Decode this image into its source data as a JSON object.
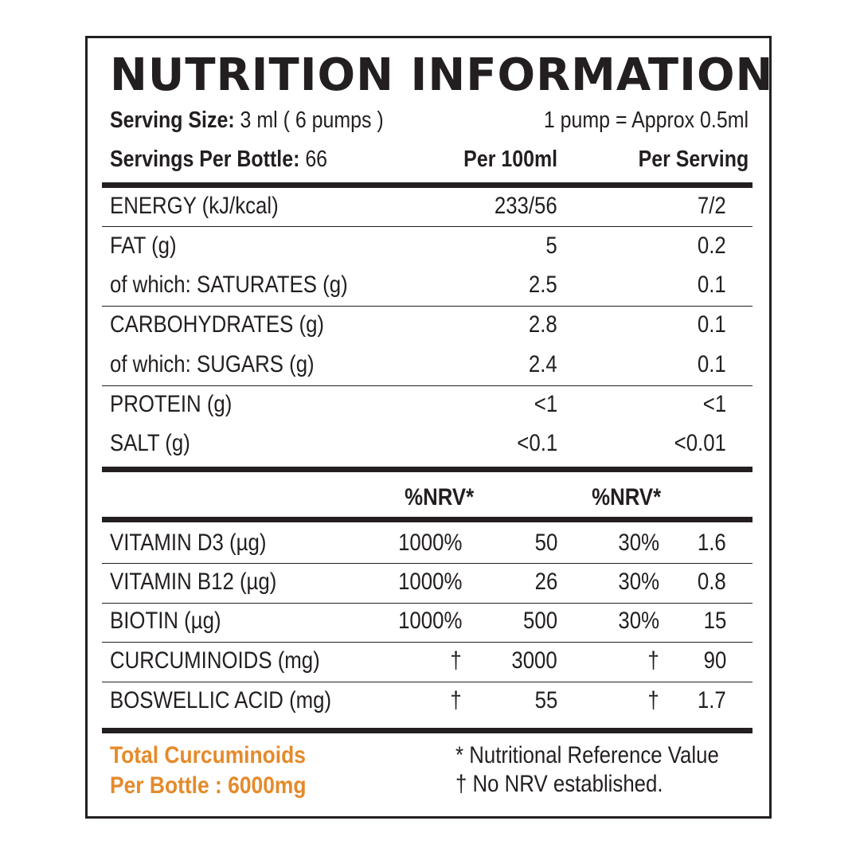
{
  "title": "NUTRITION INFORMATION",
  "serving": {
    "size_label": "Serving Size:",
    "size_value": "3 ml ( 6 pumps )",
    "pump_note": "1 pump = Approx 0.5ml",
    "per_bottle_label": "Servings Per Bottle:",
    "per_bottle_value": "66"
  },
  "columns": {
    "per_100": "Per 100ml",
    "per_serving": "Per Serving",
    "nrv_1": "%NRV*",
    "nrv_2": "%NRV*"
  },
  "nutrients": [
    {
      "name": "ENERGY (kJ/kcal)",
      "per_100": "233/56",
      "per_serving": "7/2"
    },
    {
      "name": "FAT (g)",
      "per_100": "5",
      "per_serving": "0.2"
    },
    {
      "name": "of which: SATURATES (g)",
      "per_100": "2.5",
      "per_serving": "0.1"
    },
    {
      "name": "CARBOHYDRATES (g)",
      "per_100": "2.8",
      "per_serving": "0.1"
    },
    {
      "name": "of which: SUGARS (g)",
      "per_100": "2.4",
      "per_serving": "0.1"
    },
    {
      "name": "PROTEIN (g)",
      "per_100": "<1",
      "per_serving": "<1"
    },
    {
      "name": "SALT (g)",
      "per_100": "<0.1",
      "per_serving": "<0.01"
    }
  ],
  "micros": [
    {
      "name": "VITAMIN D3 (µg)",
      "nrv_100": "1000%",
      "per_100": "50",
      "nrv_serving": "30%",
      "per_serving": "1.6"
    },
    {
      "name": "VITAMIN B12 (µg)",
      "nrv_100": "1000%",
      "per_100": "26",
      "nrv_serving": "30%",
      "per_serving": "0.8"
    },
    {
      "name": "BIOTIN (µg)",
      "nrv_100": "1000%",
      "per_100": "500",
      "nrv_serving": "30%",
      "per_serving": "15"
    },
    {
      "name": "CURCUMINOIDS (mg)",
      "nrv_100": "†",
      "per_100": "3000",
      "nrv_serving": "†",
      "per_serving": "90"
    },
    {
      "name": "BOSWELLIC ACID (mg)",
      "nrv_100": "†",
      "per_100": "55",
      "nrv_serving": "†",
      "per_serving": "1.7"
    }
  ],
  "footer": {
    "highlight_line1": "Total Curcuminoids",
    "highlight_line2": "Per Bottle : 6000mg",
    "note_nrv": "* Nutritional Reference Value",
    "note_dagger": "† No NRV established."
  },
  "colors": {
    "text": "#231f20",
    "accent": "#e58a2b",
    "background": "#ffffff"
  }
}
